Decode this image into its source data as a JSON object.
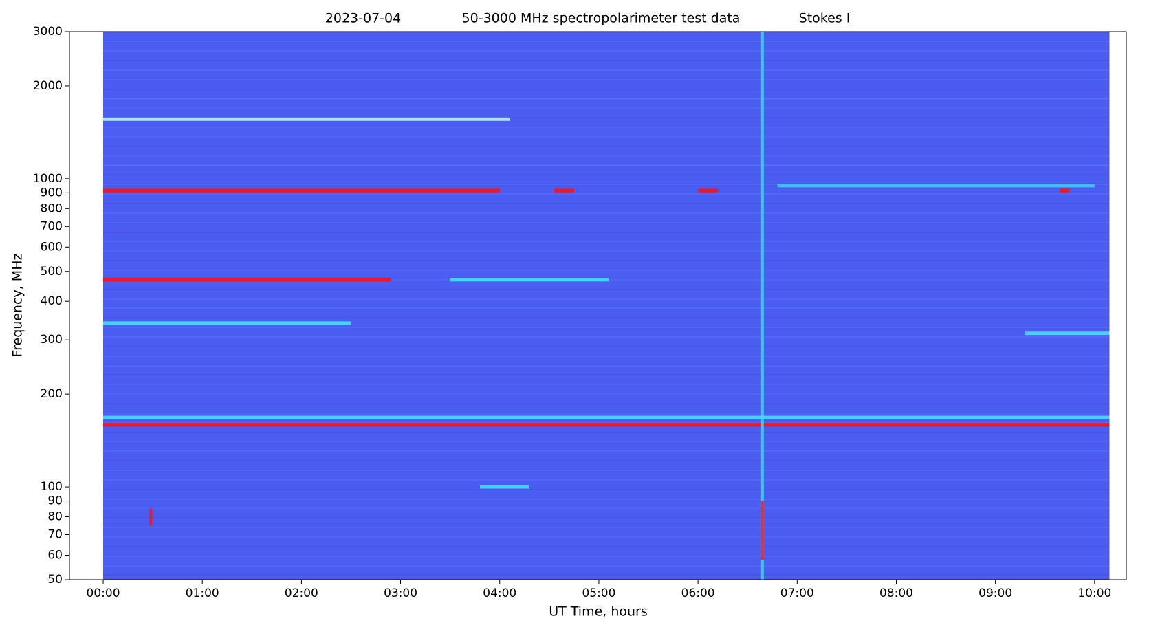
{
  "chart_data": {
    "type": "spectrogram",
    "title_date": "2023-07-04",
    "title": "50-3000 MHz spectropolarimeter test data",
    "title_param": "Stokes I",
    "xlabel": "UT Time, hours",
    "ylabel": "Frequency, MHz",
    "log_y": true,
    "background_color": "#4b5cf0",
    "time_range": [
      0,
      10.15
    ],
    "xlim": [
      -0.34,
      10.32
    ],
    "xticks": [
      {
        "value": 0,
        "label": "00:00"
      },
      {
        "value": 1,
        "label": "01:00"
      },
      {
        "value": 2,
        "label": "02:00"
      },
      {
        "value": 3,
        "label": "03:00"
      },
      {
        "value": 4,
        "label": "04:00"
      },
      {
        "value": 5,
        "label": "05:00"
      },
      {
        "value": 6,
        "label": "06:00"
      },
      {
        "value": 7,
        "label": "07:00"
      },
      {
        "value": 8,
        "label": "08:00"
      },
      {
        "value": 9,
        "label": "09:00"
      },
      {
        "value": 10,
        "label": "10:00"
      }
    ],
    "ylim": [
      50,
      3000
    ],
    "yticks": [
      50,
      60,
      70,
      80,
      90,
      100,
      200,
      300,
      400,
      500,
      600,
      700,
      800,
      900,
      1000,
      2000,
      3000
    ],
    "bands": [
      {
        "freq": 1560,
        "start": 0,
        "end": 4.1,
        "color": "#b8f0ff"
      },
      {
        "freq": 915,
        "start": 0,
        "end": 4.0,
        "color": "#ff1010"
      },
      {
        "freq": 915,
        "start": 4.55,
        "end": 4.75,
        "color": "#ff1010"
      },
      {
        "freq": 915,
        "start": 6.0,
        "end": 6.2,
        "color": "#ff1010"
      },
      {
        "freq": 915,
        "start": 9.65,
        "end": 9.75,
        "color": "#ff1010"
      },
      {
        "freq": 950,
        "start": 6.8,
        "end": 10.0,
        "color": "#40c8ff"
      },
      {
        "freq": 470,
        "start": 0,
        "end": 2.9,
        "color": "#ff1010"
      },
      {
        "freq": 470,
        "start": 3.5,
        "end": 5.1,
        "color": "#40e0ff"
      },
      {
        "freq": 340,
        "start": 0,
        "end": 2.5,
        "color": "#40e0ff"
      },
      {
        "freq": 315,
        "start": 9.3,
        "end": 10.15,
        "color": "#40e0ff"
      },
      {
        "freq": 168,
        "start": 0,
        "end": 10.15,
        "color": "#40e0ff"
      },
      {
        "freq": 159,
        "start": 0,
        "end": 10.15,
        "color": "#ff1010"
      },
      {
        "freq": 100,
        "start": 3.8,
        "end": 4.3,
        "color": "#40e0ff"
      }
    ],
    "bursts": [
      {
        "time": 6.65,
        "f_low": 50,
        "f_high": 3000,
        "color": "#40e0ff"
      },
      {
        "time": 6.65,
        "f_low": 58,
        "f_high": 90,
        "color": "#ff1010"
      },
      {
        "time": 0.48,
        "f_low": 75,
        "f_high": 85,
        "color": "#ff1010"
      }
    ]
  }
}
